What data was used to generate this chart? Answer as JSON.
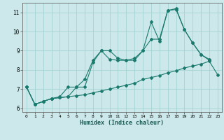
{
  "xlabel": "Humidex (Indice chaleur)",
  "bg_color": "#cce8ea",
  "grid_color": "#9ecfcf",
  "line_color": "#1a7a6e",
  "xlim": [
    -0.5,
    23.5
  ],
  "ylim": [
    5.8,
    11.5
  ],
  "xticks": [
    0,
    1,
    2,
    3,
    4,
    5,
    6,
    7,
    8,
    9,
    10,
    11,
    12,
    13,
    14,
    15,
    16,
    17,
    18,
    19,
    20,
    21,
    22,
    23
  ],
  "yticks": [
    6,
    7,
    8,
    9,
    10,
    11
  ],
  "line1_x": [
    0,
    1,
    2,
    3,
    4,
    5,
    6,
    7,
    8,
    9,
    10,
    11,
    12,
    13,
    14,
    15,
    16,
    17,
    18,
    19,
    20,
    21,
    22
  ],
  "line1_y": [
    7.1,
    6.2,
    6.35,
    6.5,
    6.6,
    7.1,
    7.1,
    7.5,
    8.5,
    9.0,
    9.0,
    8.6,
    8.5,
    8.6,
    9.0,
    10.5,
    9.5,
    11.1,
    11.2,
    10.1,
    9.4,
    8.8,
    8.55
  ],
  "line2_x": [
    0,
    1,
    2,
    3,
    4,
    5,
    6,
    7,
    8,
    9,
    10,
    11,
    12,
    13,
    14,
    15,
    16,
    17,
    18,
    19,
    20,
    21,
    22
  ],
  "line2_y": [
    7.1,
    6.2,
    6.35,
    6.5,
    6.55,
    6.6,
    7.1,
    7.1,
    8.4,
    9.0,
    8.55,
    8.5,
    8.5,
    8.5,
    9.0,
    9.6,
    9.6,
    11.1,
    11.15,
    10.1,
    9.4,
    8.8,
    8.5
  ],
  "line3_x": [
    0,
    1,
    2,
    3,
    4,
    5,
    6,
    7,
    8,
    9,
    10,
    11,
    12,
    13,
    14,
    15,
    16,
    17,
    18,
    19,
    20,
    21,
    22,
    23
  ],
  "line3_y": [
    7.1,
    6.2,
    6.35,
    6.5,
    6.55,
    6.6,
    6.65,
    6.7,
    6.8,
    6.9,
    7.0,
    7.1,
    7.2,
    7.3,
    7.5,
    7.6,
    7.7,
    7.85,
    7.95,
    8.1,
    8.2,
    8.3,
    8.45,
    7.75
  ]
}
